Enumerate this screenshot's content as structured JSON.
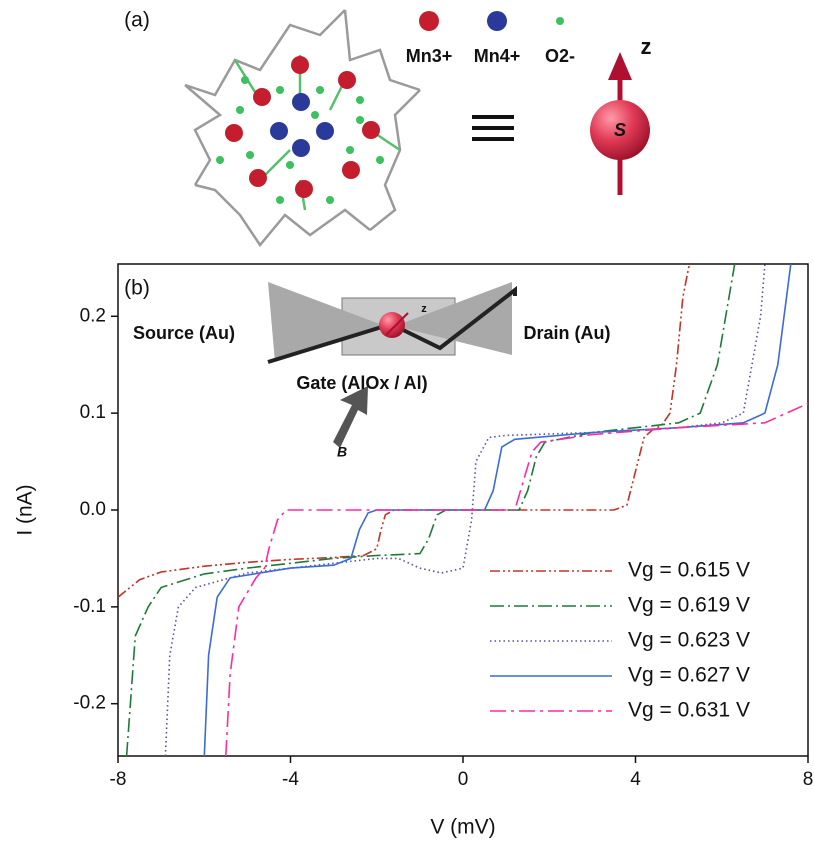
{
  "chart_data": {
    "type": "line",
    "panel_labels": [
      "(a)",
      "(b)"
    ],
    "legend_a": [
      "Mn3+",
      "Mn4+",
      "O2-"
    ],
    "annotations": [
      "z",
      "S",
      "Source  (Au)",
      "Drain  (Au)",
      "Gate  (AlOx / Al)",
      "B",
      "z"
    ],
    "xlabel": "V (mV)",
    "ylabel": "I (nA)",
    "xlim": [
      -8,
      8
    ],
    "ylim": [
      -0.254,
      0.254
    ],
    "xticks": [
      -8,
      -4,
      0,
      4,
      8
    ],
    "yticks": [
      -0.2,
      -0.1,
      {
        "value": 0,
        "label": "0.0"
      },
      0.1,
      0.2
    ],
    "legend": "lower right",
    "series": [
      {
        "name": "Vg = 0.615 V",
        "color": "#c8302a",
        "linestyle": "dash-dot-dot",
        "x": [
          -8,
          -7.5,
          -7,
          -6,
          -5,
          -4,
          -3,
          -2.3,
          -2.0,
          -1.9,
          -1.8,
          -1.6,
          0,
          2,
          3.5,
          3.8,
          4.0,
          4.2,
          4.4,
          4.6,
          4.8,
          4.95,
          5.1,
          5.25
        ],
        "values": [
          -0.09,
          -0.072,
          -0.064,
          -0.058,
          -0.054,
          -0.051,
          -0.049,
          -0.047,
          -0.04,
          -0.02,
          -0.005,
          0,
          0,
          0,
          0,
          0.005,
          0.04,
          0.075,
          0.083,
          0.087,
          0.1,
          0.15,
          0.22,
          0.254
        ]
      },
      {
        "name": "Vg = 0.619 V",
        "color": "#1f7a3a",
        "linestyle": "dash-dot",
        "x": [
          -7.8,
          -7.6,
          -7.3,
          -7,
          -6,
          -5,
          -4,
          -3,
          -2,
          -1,
          -0.8,
          -0.6,
          -0.4,
          1.3,
          1.5,
          1.7,
          1.9,
          3,
          4,
          5,
          5.5,
          5.9,
          6.3
        ],
        "values": [
          -0.254,
          -0.13,
          -0.1,
          -0.08,
          -0.066,
          -0.06,
          -0.055,
          -0.05,
          -0.047,
          -0.045,
          -0.03,
          -0.005,
          0,
          0,
          0.02,
          0.055,
          0.07,
          0.08,
          0.085,
          0.09,
          0.1,
          0.15,
          0.254
        ]
      },
      {
        "name": "Vg = 0.623 V",
        "color": "#5a4fa0",
        "linestyle": "dotted",
        "x": [
          -6.9,
          -6.8,
          -6.6,
          -6.2,
          -5,
          -3,
          -2,
          -1.5,
          -1,
          -0.5,
          0,
          0.2,
          0.3,
          0.6,
          1,
          3,
          5,
          6,
          6.5,
          6.9,
          7.0
        ],
        "values": [
          -0.254,
          -0.15,
          -0.1,
          -0.08,
          -0.065,
          -0.055,
          -0.05,
          -0.05,
          -0.06,
          -0.065,
          -0.06,
          -0.01,
          0.05,
          0.075,
          0.077,
          0.08,
          0.085,
          0.09,
          0.1,
          0.2,
          0.254
        ]
      },
      {
        "name": "Vg = 0.627 V",
        "color": "#3a6bd6",
        "linestyle": "solid",
        "x": [
          -6.0,
          -5.9,
          -5.7,
          -5.4,
          -4,
          -3,
          -2.6,
          -2.4,
          -2.2,
          -2,
          0.5,
          0.7,
          0.9,
          1.2,
          3,
          5,
          6.5,
          7,
          7.3,
          7.6
        ],
        "values": [
          -0.254,
          -0.15,
          -0.09,
          -0.07,
          -0.06,
          -0.057,
          -0.05,
          -0.02,
          -0.003,
          0,
          0,
          0.02,
          0.065,
          0.073,
          0.08,
          0.085,
          0.09,
          0.1,
          0.15,
          0.254
        ]
      },
      {
        "name": "Vg = 0.631 V",
        "color": "#ff2aa0",
        "linestyle": "long-dash-dot",
        "x": [
          -5.5,
          -5.4,
          -5.2,
          -4.8,
          -4.6,
          -4.5,
          -4.3,
          -4.1,
          1.2,
          1.4,
          1.6,
          1.8,
          3,
          5,
          7,
          8
        ],
        "values": [
          -0.254,
          -0.17,
          -0.1,
          -0.07,
          -0.06,
          -0.04,
          -0.01,
          0,
          0,
          0.03,
          0.06,
          0.07,
          0.078,
          0.085,
          0.09,
          0.11
        ]
      }
    ]
  }
}
